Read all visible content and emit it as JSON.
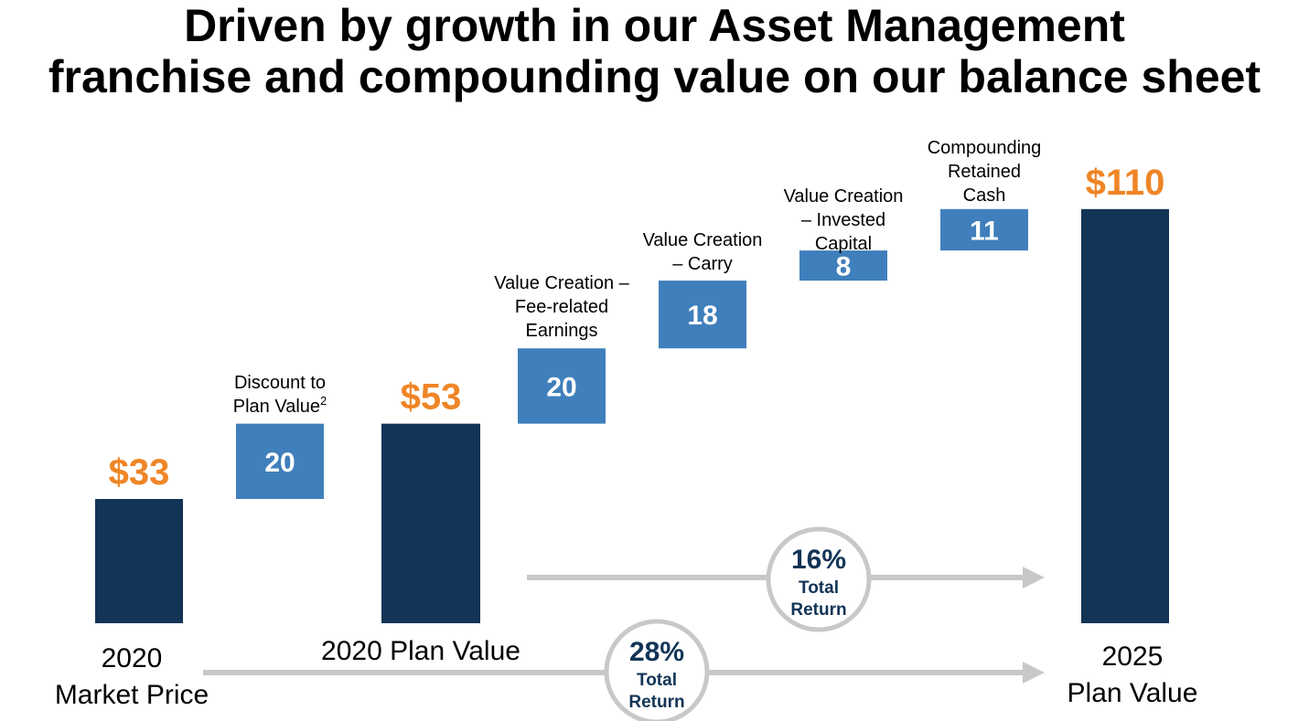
{
  "title": {
    "line1": "Driven by growth in our Asset Management",
    "line2": "franchise and compounding value on our balance sheet"
  },
  "colors": {
    "total_bar": "#123456",
    "step_bar": "#3f7fbb",
    "total_label": "#ef8526",
    "arrow": "#c8c8c8",
    "badge_text": "#123456",
    "badge_border": "#c8c8c8"
  },
  "chart_data": {
    "type": "bar",
    "subtype": "waterfall",
    "bars": [
      {
        "kind": "total",
        "value": 33,
        "base": 0,
        "label": "$33",
        "category": [
          "2020",
          "Market Price"
        ]
      },
      {
        "kind": "step",
        "value": 20,
        "base": 33,
        "label": "20",
        "category": [
          "Discount to",
          "Plan Value²"
        ]
      },
      {
        "kind": "total",
        "value": 53,
        "base": 0,
        "label": "$53",
        "category": [
          "2020 Plan Value"
        ]
      },
      {
        "kind": "step",
        "value": 20,
        "base": 53,
        "label": "20",
        "category": [
          "Value Creation –",
          "Fee-related",
          "Earnings"
        ]
      },
      {
        "kind": "step",
        "value": 18,
        "base": 73,
        "label": "18",
        "category": [
          "Value Creation",
          "– Carry"
        ]
      },
      {
        "kind": "step",
        "value": 8,
        "base": 91,
        "label": "8",
        "category": [
          "Value Creation",
          "– Invested",
          "Capital"
        ]
      },
      {
        "kind": "step",
        "value": 11,
        "base": 99,
        "label": "11",
        "category": [
          "Compounding",
          "Retained",
          "Cash"
        ]
      },
      {
        "kind": "total",
        "value": 110,
        "base": 0,
        "label": "$110",
        "category": [
          "2025",
          "Plan Value"
        ]
      }
    ],
    "returns": [
      {
        "percent": "16%",
        "label_line1": "Total",
        "label_line2": "Return",
        "from": "2020 Plan Value",
        "to": "2025 Plan Value"
      },
      {
        "percent": "28%",
        "label_line1": "Total",
        "label_line2": "Return",
        "from": "2020 Market Price",
        "to": "2025 Plan Value"
      }
    ],
    "ylim": [
      0,
      110
    ]
  }
}
